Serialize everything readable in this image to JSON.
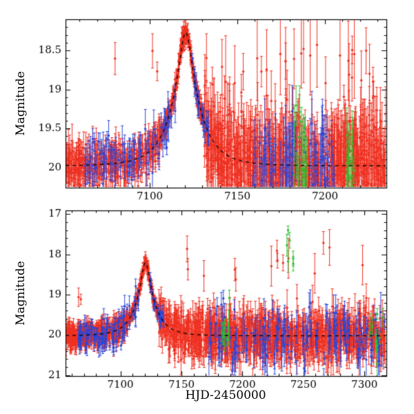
{
  "figure": {
    "xlabel": "HJD-2450000",
    "ylabel": "Magnitude",
    "background": "#ffffff",
    "axis_color": "#000000"
  },
  "colors": {
    "red": "#ee3122",
    "blue": "#2946d9",
    "green": "#2fbf2f",
    "model": "#000000"
  },
  "chart_data": [
    {
      "type": "scatter",
      "panel": "top",
      "title": "",
      "xlabel": "",
      "ylabel": "Magnitude",
      "xlim": [
        7052,
        7235
      ],
      "ylim": [
        18.1,
        20.26
      ],
      "y_axis_inverted_magnitudes": true,
      "xticks": [
        7100,
        7150,
        7200
      ],
      "xtick_labels": [
        "7100",
        "7150",
        "7200"
      ],
      "yticks": [
        18.5,
        19,
        19.5,
        20
      ],
      "ytick_labels": [
        "18.5",
        "19",
        "19.5",
        "20"
      ],
      "x_minor_step": 10,
      "y_minor_step": 0.1,
      "grid": false,
      "legend": false,
      "model_curve": {
        "style": "dashed",
        "t0": 7120.5,
        "tE": 16,
        "u0": 0.21,
        "baseline_mag": 19.98,
        "peak_mag": 18.32
      },
      "series": [
        {
          "name": "survey-red",
          "color": "red",
          "seed": 11,
          "segments": [
            {
              "t": [
                7052,
                7106
              ],
              "n": 380,
              "mode": "model",
              "sigma": 0.12,
              "err": [
                0.06,
                0.22
              ]
            },
            {
              "t": [
                7106,
                7131
              ],
              "n": 260,
              "mode": "model",
              "sigma": 0.055,
              "err": [
                0.04,
                0.12
              ]
            },
            {
              "t": [
                7131,
                7235
              ],
              "n": 950,
              "mode": "model",
              "sigma": 0.3,
              "err": [
                0.12,
                0.45
              ],
              "clip": [
                18.45,
                20.32
              ]
            },
            {
              "t": [
                7140,
                7235
              ],
              "n": 26,
              "mode": "uniform",
              "mag": [
                18.35,
                19.0
              ],
              "err": [
                0.15,
                0.6
              ]
            },
            {
              "t": [
                7068,
                7110
              ],
              "n": 3,
              "mode": "uniform",
              "mag": [
                18.45,
                18.9
              ],
              "err": [
                0.1,
                0.3
              ]
            }
          ]
        },
        {
          "name": "survey-blue",
          "color": "blue",
          "seed": 22,
          "segments": [
            {
              "t": [
                7063,
                7115
              ],
              "n": 80,
              "mode": "model",
              "sigma": 0.16,
              "err": [
                0.08,
                0.3
              ]
            },
            {
              "t": [
                7124,
                7135
              ],
              "n": 22,
              "mode": "model",
              "sigma": 0.09,
              "err": [
                0.06,
                0.2
              ]
            },
            {
              "t": [
                7158,
                7206
              ],
              "n": 85,
              "mode": "model",
              "sigma": 0.32,
              "err": [
                0.12,
                0.45
              ],
              "clip": [
                18.9,
                20.32
              ]
            }
          ]
        },
        {
          "name": "survey-green",
          "color": "green",
          "seed": 33,
          "segments": [
            {
              "t": [
                7182,
                7190
              ],
              "n": 26,
              "mode": "model",
              "sigma": 0.33,
              "err": [
                0.12,
                0.4
              ],
              "clip": [
                18.95,
                20.3
              ]
            },
            {
              "t": [
                7212,
                7218
              ],
              "n": 14,
              "mode": "model",
              "sigma": 0.3,
              "err": [
                0.12,
                0.4
              ],
              "clip": [
                19.0,
                20.3
              ]
            }
          ]
        }
      ]
    },
    {
      "type": "scatter",
      "panel": "bottom",
      "title": "",
      "xlabel": "HJD-2450000",
      "ylabel": "Magnitude",
      "xlim": [
        7055,
        7318
      ],
      "ylim": [
        16.91,
        21.02
      ],
      "y_axis_inverted_magnitudes": true,
      "xticks": [
        7100,
        7150,
        7200,
        7250,
        7300
      ],
      "xtick_labels": [
        "7100",
        "7150",
        "7200",
        "7250",
        "7300"
      ],
      "yticks": [
        17,
        18,
        19,
        20,
        21
      ],
      "ytick_labels": [
        "17",
        "18",
        "19",
        "20",
        "21"
      ],
      "x_minor_step": 10,
      "y_minor_step": 0.2,
      "grid": false,
      "legend": false,
      "model_curve": {
        "style": "dashed",
        "t0": 7120.5,
        "tE": 16,
        "u0": 0.19,
        "baseline_mag": 20.02,
        "peak_mag": 18.25
      },
      "series": [
        {
          "name": "survey-red",
          "color": "red",
          "seed": 44,
          "segments": [
            {
              "t": [
                7055,
                7106
              ],
              "n": 420,
              "mode": "model",
              "sigma": 0.13,
              "err": [
                0.07,
                0.25
              ]
            },
            {
              "t": [
                7106,
                7131
              ],
              "n": 230,
              "mode": "model",
              "sigma": 0.06,
              "err": [
                0.05,
                0.15
              ]
            },
            {
              "t": [
                7131,
                7318
              ],
              "n": 1100,
              "mode": "model",
              "sigma": 0.27,
              "err": [
                0.12,
                0.45
              ],
              "clip": [
                18.7,
                21.05
              ]
            },
            {
              "t": [
                7145,
                7315
              ],
              "n": 14,
              "mode": "uniform",
              "mag": [
                17.7,
                18.7
              ],
              "err": [
                0.15,
                0.5
              ]
            },
            {
              "t": [
                7065,
                7075
              ],
              "n": 2,
              "mode": "uniform",
              "mag": [
                18.9,
                19.3
              ],
              "err": [
                0.1,
                0.3
              ]
            }
          ]
        },
        {
          "name": "survey-blue",
          "color": "blue",
          "seed": 55,
          "segments": [
            {
              "t": [
                7065,
                7115
              ],
              "n": 90,
              "mode": "model",
              "sigma": 0.2,
              "err": [
                0.08,
                0.3
              ]
            },
            {
              "t": [
                7124,
                7136
              ],
              "n": 20,
              "mode": "model",
              "sigma": 0.12,
              "err": [
                0.06,
                0.2
              ]
            },
            {
              "t": [
                7172,
                7318
              ],
              "n": 160,
              "mode": "model",
              "sigma": 0.38,
              "err": [
                0.15,
                0.5
              ],
              "clip": [
                18.9,
                21.05
              ]
            }
          ]
        },
        {
          "name": "survey-green",
          "color": "green",
          "seed": 66,
          "segments": [
            {
              "t": [
                7183,
                7190
              ],
              "n": 10,
              "mode": "model",
              "sigma": 0.3,
              "err": [
                0.12,
                0.4
              ]
            },
            {
              "t": [
                7236,
                7242
              ],
              "n": 6,
              "mode": "uniform",
              "mag": [
                17.3,
                19.6
              ],
              "err": [
                0.1,
                0.3
              ]
            },
            {
              "t": [
                7304,
                7316
              ],
              "n": 10,
              "mode": "model",
              "sigma": 0.3,
              "err": [
                0.12,
                0.4
              ]
            }
          ]
        }
      ]
    }
  ]
}
